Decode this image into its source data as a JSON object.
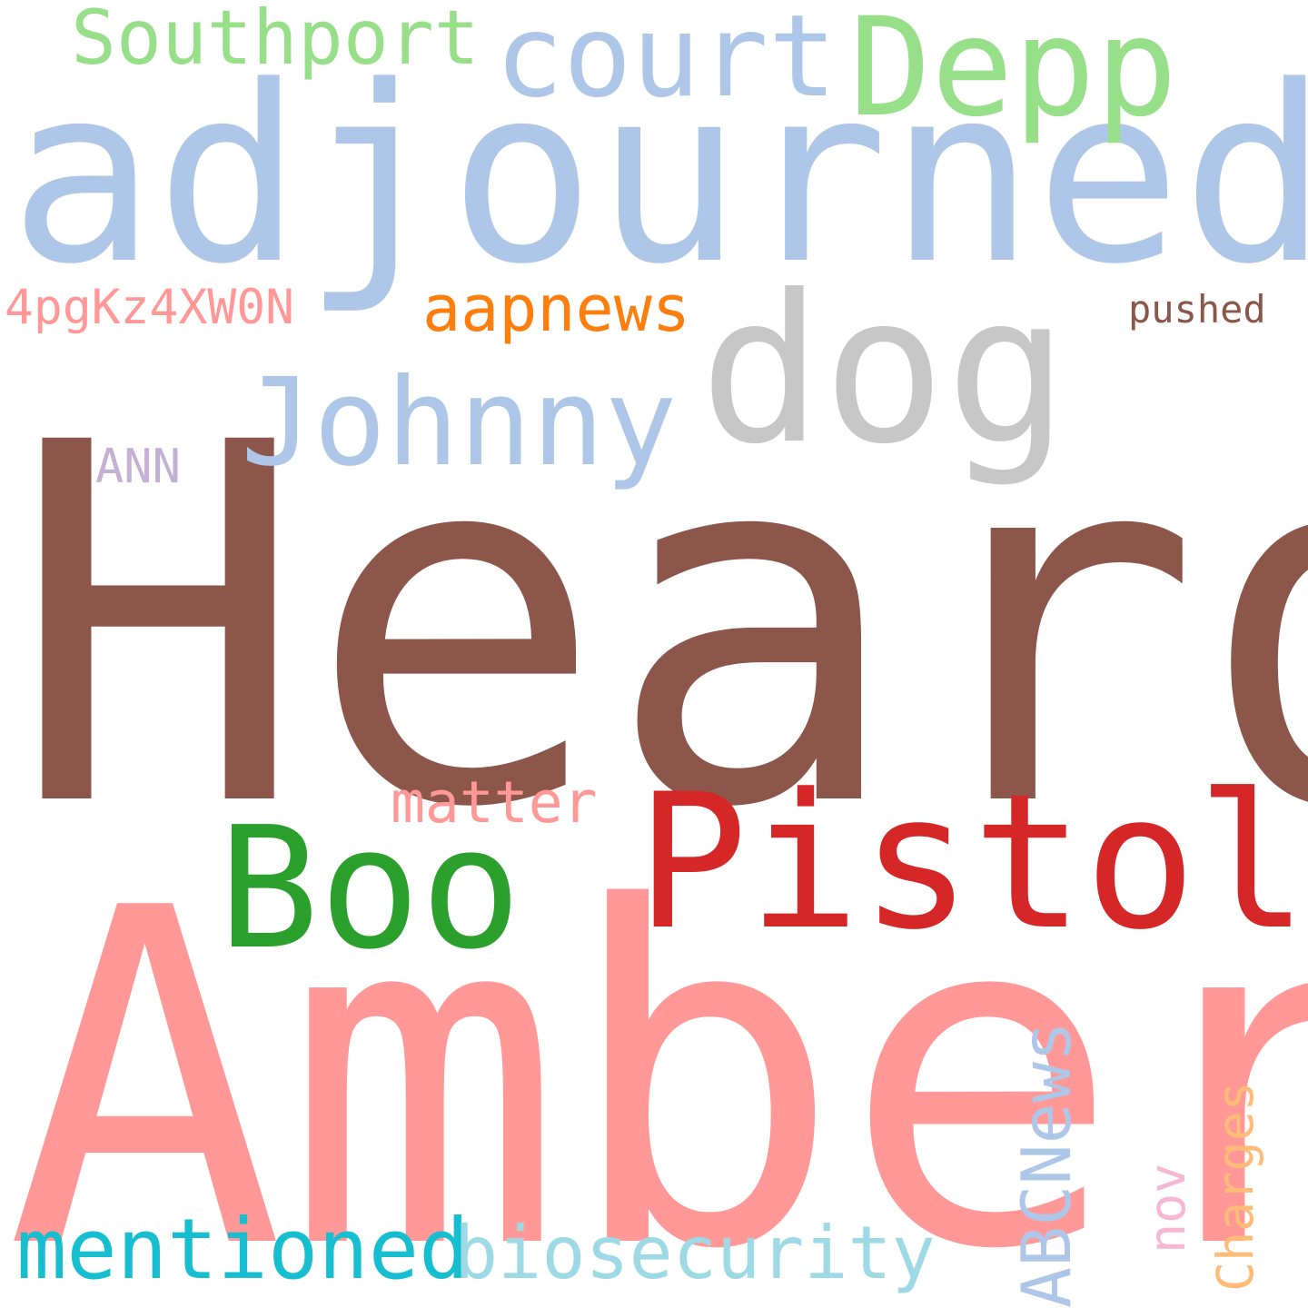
{
  "cloud": {
    "words": {
      "heard": {
        "text": "Heard",
        "color": "#8c564b"
      },
      "amber": {
        "text": "Amber",
        "color": "#ff9896"
      },
      "adjourned": {
        "text": "adjourned",
        "color": "#aec7e8"
      },
      "pistol": {
        "text": "Pistol",
        "color": "#d62728"
      },
      "boo": {
        "text": "Boo",
        "color": "#2ca02c"
      },
      "dog": {
        "text": "dog",
        "color": "#c7c7c7"
      },
      "depp": {
        "text": "Depp",
        "color": "#98df8a"
      },
      "court": {
        "text": "court",
        "color": "#aec7e8"
      },
      "johnny": {
        "text": "Johnny",
        "color": "#aec7e8"
      },
      "southport": {
        "text": "Southport",
        "color": "#98df8a"
      },
      "mentioned": {
        "text": "mentioned",
        "color": "#17becf"
      },
      "biosecurity": {
        "text": "biosecurity",
        "color": "#9edae5"
      },
      "aapnews": {
        "text": "aapnews",
        "color": "#ff7f0e"
      },
      "matter": {
        "text": "matter",
        "color": "#ff9896"
      },
      "code": {
        "text": "4pgKz4XW0N",
        "color": "#ff9896"
      },
      "ann": {
        "text": "ANN",
        "color": "#c5b0d5"
      },
      "pushed": {
        "text": "pushed",
        "color": "#8c564b"
      },
      "abcnews": {
        "text": "ABCNews",
        "color": "#aec7e8"
      },
      "nov": {
        "text": "nov",
        "color": "#f7b6d2"
      },
      "charges": {
        "text": "Charges",
        "color": "#ffbb78"
      }
    }
  }
}
